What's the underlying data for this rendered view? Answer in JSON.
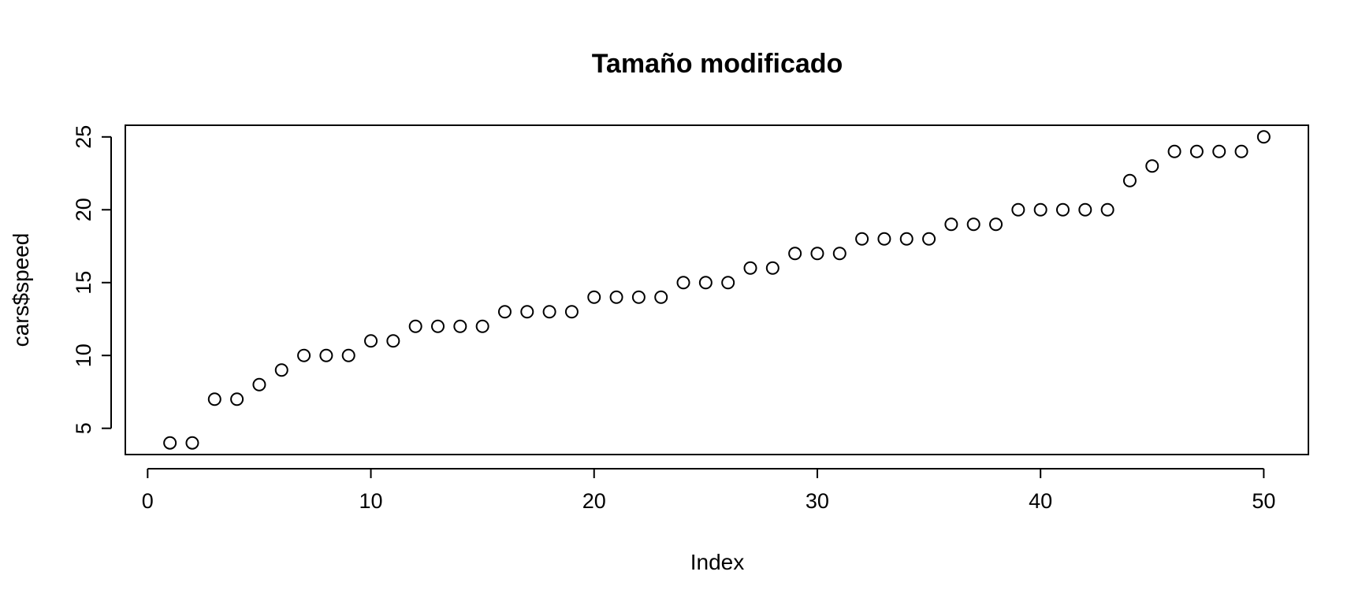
{
  "chart_data": {
    "type": "scatter",
    "title": "Tamaño modificado",
    "xlabel": "Index",
    "ylabel": "cars$speed",
    "xlim": [
      -1,
      52
    ],
    "ylim": [
      3.2,
      25.8
    ],
    "x_ticks": [
      0,
      10,
      20,
      30,
      40,
      50
    ],
    "y_ticks": [
      5,
      10,
      15,
      20,
      25
    ],
    "grid": false,
    "marker": "open-circle",
    "series": [
      {
        "x": [
          1,
          2,
          3,
          4,
          5,
          6,
          7,
          8,
          9,
          10,
          11,
          12,
          13,
          14,
          15,
          16,
          17,
          18,
          19,
          20,
          21,
          22,
          23,
          24,
          25,
          26,
          27,
          28,
          29,
          30,
          31,
          32,
          33,
          34,
          35,
          36,
          37,
          38,
          39,
          40,
          41,
          42,
          43,
          44,
          45,
          46,
          47,
          48,
          49,
          50
        ],
        "values": [
          4,
          4,
          7,
          7,
          8,
          9,
          10,
          10,
          10,
          11,
          11,
          12,
          12,
          12,
          12,
          13,
          13,
          13,
          13,
          14,
          14,
          14,
          14,
          15,
          15,
          15,
          16,
          16,
          17,
          17,
          17,
          18,
          18,
          18,
          18,
          19,
          19,
          19,
          20,
          20,
          20,
          20,
          20,
          22,
          23,
          24,
          24,
          24,
          24,
          25
        ]
      }
    ]
  }
}
